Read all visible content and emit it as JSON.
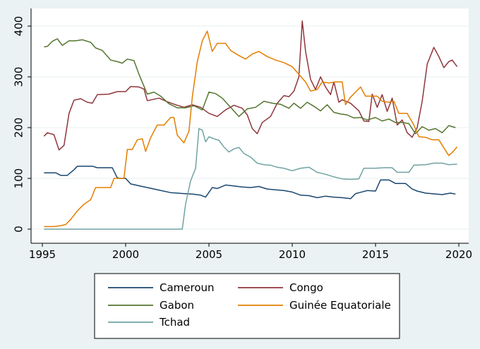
{
  "chart_data": {
    "type": "line",
    "title": "",
    "xlabel": "",
    "ylabel": "",
    "xlim": [
      1995,
      2020
    ],
    "ylim": [
      0,
      400
    ],
    "x_ticks": [
      1995,
      2000,
      2005,
      2010,
      2015,
      2020
    ],
    "y_ticks": [
      0,
      100,
      200,
      300,
      400
    ],
    "grid": "horizontal",
    "legend_position": "bottom",
    "series": [
      {
        "name": "Cameroun",
        "color": "#1a476f",
        "points": [
          [
            1995.1,
            111
          ],
          [
            1995.8,
            111
          ],
          [
            1996.1,
            106
          ],
          [
            1996.5,
            106
          ],
          [
            1996.9,
            117
          ],
          [
            1997.1,
            124
          ],
          [
            1998.0,
            124
          ],
          [
            1998.3,
            121
          ],
          [
            1999.0,
            121
          ],
          [
            1999.2,
            121
          ],
          [
            1999.5,
            101
          ],
          [
            1999.7,
            100
          ],
          [
            2000.0,
            100
          ],
          [
            2000.3,
            89
          ],
          [
            2001.0,
            84
          ],
          [
            2002.0,
            77
          ],
          [
            2002.7,
            72
          ],
          [
            2003.5,
            70
          ],
          [
            2004.0,
            69
          ],
          [
            2004.5,
            67
          ],
          [
            2004.8,
            63
          ],
          [
            2005.2,
            82
          ],
          [
            2005.5,
            80
          ],
          [
            2006.0,
            87
          ],
          [
            2006.5,
            85
          ],
          [
            2007.0,
            83
          ],
          [
            2007.5,
            82
          ],
          [
            2008.0,
            84
          ],
          [
            2008.5,
            79
          ],
          [
            2009.5,
            76
          ],
          [
            2010.0,
            73
          ],
          [
            2010.5,
            67
          ],
          [
            2011.0,
            66
          ],
          [
            2011.5,
            62
          ],
          [
            2012.0,
            65
          ],
          [
            2012.5,
            63
          ],
          [
            2013.0,
            62
          ],
          [
            2013.5,
            60
          ],
          [
            2013.8,
            70
          ],
          [
            2014.5,
            76
          ],
          [
            2015.0,
            75
          ],
          [
            2015.3,
            97
          ],
          [
            2015.8,
            97
          ],
          [
            2016.2,
            90
          ],
          [
            2016.8,
            90
          ],
          [
            2017.2,
            79
          ],
          [
            2017.5,
            75
          ],
          [
            2018.0,
            71
          ],
          [
            2019.0,
            68
          ],
          [
            2019.5,
            71
          ],
          [
            2019.8,
            69
          ]
        ]
      },
      {
        "name": "Congo",
        "color": "#90353b",
        "points": [
          [
            1995.1,
            183
          ],
          [
            1995.3,
            190
          ],
          [
            1995.7,
            186
          ],
          [
            1996.0,
            156
          ],
          [
            1996.3,
            165
          ],
          [
            1996.6,
            228
          ],
          [
            1996.9,
            254
          ],
          [
            1997.3,
            257
          ],
          [
            1997.7,
            250
          ],
          [
            1998.0,
            248
          ],
          [
            1998.3,
            265
          ],
          [
            1999.0,
            266
          ],
          [
            1999.5,
            271
          ],
          [
            2000.0,
            271
          ],
          [
            2000.3,
            281
          ],
          [
            2000.8,
            280
          ],
          [
            2001.1,
            276
          ],
          [
            2001.3,
            253
          ],
          [
            2002.0,
            258
          ],
          [
            2002.5,
            251
          ],
          [
            2003.0,
            245
          ],
          [
            2003.5,
            240
          ],
          [
            2004.0,
            245
          ],
          [
            2004.5,
            240
          ],
          [
            2005.0,
            228
          ],
          [
            2005.5,
            222
          ],
          [
            2006.0,
            235
          ],
          [
            2006.5,
            244
          ],
          [
            2007.0,
            238
          ],
          [
            2007.3,
            225
          ],
          [
            2007.6,
            198
          ],
          [
            2007.9,
            188
          ],
          [
            2008.2,
            210
          ],
          [
            2008.7,
            222
          ],
          [
            2009.1,
            248
          ],
          [
            2009.5,
            263
          ],
          [
            2009.8,
            261
          ],
          [
            2010.1,
            272
          ],
          [
            2010.4,
            300
          ],
          [
            2010.6,
            410
          ],
          [
            2010.8,
            350
          ],
          [
            2011.1,
            295
          ],
          [
            2011.4,
            275
          ],
          [
            2011.7,
            300
          ],
          [
            2012.0,
            280
          ],
          [
            2012.3,
            265
          ],
          [
            2012.5,
            290
          ],
          [
            2012.8,
            250
          ],
          [
            2013.0,
            255
          ],
          [
            2013.5,
            248
          ],
          [
            2014.0,
            233
          ],
          [
            2014.3,
            213
          ],
          [
            2014.6,
            212
          ],
          [
            2014.8,
            266
          ],
          [
            2015.1,
            240
          ],
          [
            2015.4,
            265
          ],
          [
            2015.7,
            232
          ],
          [
            2016.0,
            258
          ],
          [
            2016.3,
            205
          ],
          [
            2016.6,
            215
          ],
          [
            2016.9,
            190
          ],
          [
            2017.2,
            181
          ],
          [
            2017.5,
            200
          ],
          [
            2017.8,
            252
          ],
          [
            2018.1,
            325
          ],
          [
            2018.5,
            358
          ],
          [
            2018.8,
            340
          ],
          [
            2019.1,
            318
          ],
          [
            2019.4,
            330
          ],
          [
            2019.6,
            333
          ],
          [
            2019.9,
            320
          ]
        ]
      },
      {
        "name": "Gabon",
        "color": "#55752f",
        "points": [
          [
            1995.1,
            359
          ],
          [
            1995.3,
            360
          ],
          [
            1995.6,
            370
          ],
          [
            1995.9,
            375
          ],
          [
            1996.2,
            362
          ],
          [
            1996.6,
            371
          ],
          [
            1997.0,
            371
          ],
          [
            1997.4,
            373
          ],
          [
            1997.9,
            368
          ],
          [
            1998.2,
            357
          ],
          [
            1998.6,
            352
          ],
          [
            1999.1,
            333
          ],
          [
            1999.5,
            330
          ],
          [
            1999.8,
            327
          ],
          [
            2000.1,
            335
          ],
          [
            2000.5,
            332
          ],
          [
            2000.8,
            305
          ],
          [
            2001.3,
            266
          ],
          [
            2001.7,
            270
          ],
          [
            2002.1,
            262
          ],
          [
            2002.6,
            247
          ],
          [
            2003.1,
            239
          ],
          [
            2003.6,
            239
          ],
          [
            2004.1,
            243
          ],
          [
            2004.6,
            235
          ],
          [
            2005.0,
            270
          ],
          [
            2005.4,
            267
          ],
          [
            2005.8,
            258
          ],
          [
            2006.3,
            240
          ],
          [
            2006.8,
            222
          ],
          [
            2007.3,
            237
          ],
          [
            2007.8,
            240
          ],
          [
            2008.3,
            252
          ],
          [
            2008.8,
            248
          ],
          [
            2009.3,
            246
          ],
          [
            2009.8,
            238
          ],
          [
            2010.1,
            248
          ],
          [
            2010.5,
            238
          ],
          [
            2010.9,
            250
          ],
          [
            2011.3,
            242
          ],
          [
            2011.7,
            233
          ],
          [
            2012.1,
            245
          ],
          [
            2012.5,
            230
          ],
          [
            2012.9,
            227
          ],
          [
            2013.3,
            225
          ],
          [
            2013.7,
            219
          ],
          [
            2014.1,
            220
          ],
          [
            2014.5,
            215
          ],
          [
            2015.0,
            220
          ],
          [
            2015.4,
            213
          ],
          [
            2015.8,
            217
          ],
          [
            2016.2,
            210
          ],
          [
            2016.6,
            210
          ],
          [
            2017.0,
            208
          ],
          [
            2017.4,
            188
          ],
          [
            2017.8,
            202
          ],
          [
            2018.2,
            195
          ],
          [
            2018.6,
            198
          ],
          [
            2019.0,
            190
          ],
          [
            2019.4,
            204
          ],
          [
            2019.8,
            200
          ]
        ]
      },
      {
        "name": "Guinée Equatoriale",
        "color": "#e37e00",
        "points": [
          [
            1995.1,
            5
          ],
          [
            1995.7,
            5
          ],
          [
            1996.1,
            7
          ],
          [
            1996.4,
            9
          ],
          [
            1996.7,
            19
          ],
          [
            1997.1,
            36
          ],
          [
            1997.5,
            49
          ],
          [
            1997.9,
            58
          ],
          [
            1998.2,
            82
          ],
          [
            1998.7,
            82
          ],
          [
            1999.1,
            82
          ],
          [
            1999.3,
            100
          ],
          [
            1999.9,
            100
          ],
          [
            2000.1,
            157
          ],
          [
            2000.4,
            157
          ],
          [
            2000.7,
            176
          ],
          [
            2001.0,
            178
          ],
          [
            2001.2,
            153
          ],
          [
            2001.5,
            180
          ],
          [
            2001.9,
            205
          ],
          [
            2002.3,
            205
          ],
          [
            2002.7,
            220
          ],
          [
            2002.9,
            220
          ],
          [
            2003.1,
            185
          ],
          [
            2003.5,
            170
          ],
          [
            2003.8,
            193
          ],
          [
            2004.0,
            260
          ],
          [
            2004.3,
            330
          ],
          [
            2004.6,
            371
          ],
          [
            2004.9,
            390
          ],
          [
            2005.2,
            350
          ],
          [
            2005.5,
            366
          ],
          [
            2006.0,
            366
          ],
          [
            2006.3,
            352
          ],
          [
            2006.8,
            342
          ],
          [
            2007.2,
            335
          ],
          [
            2007.6,
            345
          ],
          [
            2008.0,
            350
          ],
          [
            2008.5,
            340
          ],
          [
            2009.0,
            333
          ],
          [
            2009.5,
            328
          ],
          [
            2010.0,
            320
          ],
          [
            2010.4,
            305
          ],
          [
            2010.8,
            290
          ],
          [
            2011.1,
            272
          ],
          [
            2011.5,
            275
          ],
          [
            2011.8,
            290
          ],
          [
            2012.2,
            288
          ],
          [
            2012.6,
            290
          ],
          [
            2013.0,
            290
          ],
          [
            2013.2,
            245
          ],
          [
            2013.5,
            260
          ],
          [
            2013.8,
            270
          ],
          [
            2014.1,
            280
          ],
          [
            2014.4,
            262
          ],
          [
            2014.8,
            262
          ],
          [
            2015.1,
            262
          ],
          [
            2015.4,
            252
          ],
          [
            2015.8,
            250
          ],
          [
            2016.1,
            252
          ],
          [
            2016.4,
            228
          ],
          [
            2016.9,
            228
          ],
          [
            2017.3,
            205
          ],
          [
            2017.6,
            182
          ],
          [
            2018.0,
            181
          ],
          [
            2018.4,
            176
          ],
          [
            2018.8,
            176
          ],
          [
            2019.1,
            160
          ],
          [
            2019.4,
            145
          ],
          [
            2019.6,
            151
          ],
          [
            2019.9,
            162
          ]
        ]
      },
      {
        "name": "Tchad",
        "color": "#71a3a3",
        "points": [
          [
            1995.1,
            0
          ],
          [
            2000.0,
            0
          ],
          [
            2003.4,
            0
          ],
          [
            2003.6,
            50
          ],
          [
            2003.9,
            95
          ],
          [
            2004.2,
            120
          ],
          [
            2004.4,
            198
          ],
          [
            2004.6,
            195
          ],
          [
            2004.8,
            172
          ],
          [
            2005.0,
            182
          ],
          [
            2005.3,
            178
          ],
          [
            2005.6,
            175
          ],
          [
            2005.9,
            162
          ],
          [
            2006.2,
            152
          ],
          [
            2006.5,
            158
          ],
          [
            2006.8,
            161
          ],
          [
            2007.1,
            149
          ],
          [
            2007.5,
            142
          ],
          [
            2007.9,
            130
          ],
          [
            2008.3,
            127
          ],
          [
            2008.7,
            126
          ],
          [
            2009.1,
            122
          ],
          [
            2009.5,
            120
          ],
          [
            2010.0,
            115
          ],
          [
            2010.5,
            120
          ],
          [
            2011.0,
            122
          ],
          [
            2011.5,
            112
          ],
          [
            2012.0,
            108
          ],
          [
            2012.5,
            103
          ],
          [
            2013.0,
            99
          ],
          [
            2013.5,
            98
          ],
          [
            2014.0,
            99
          ],
          [
            2014.3,
            120
          ],
          [
            2015.0,
            120
          ],
          [
            2015.5,
            121
          ],
          [
            2016.0,
            121
          ],
          [
            2016.3,
            112
          ],
          [
            2017.0,
            112
          ],
          [
            2017.3,
            126
          ],
          [
            2018.0,
            127
          ],
          [
            2018.5,
            130
          ],
          [
            2019.0,
            130
          ],
          [
            2019.4,
            127
          ],
          [
            2019.9,
            128
          ]
        ]
      }
    ]
  }
}
